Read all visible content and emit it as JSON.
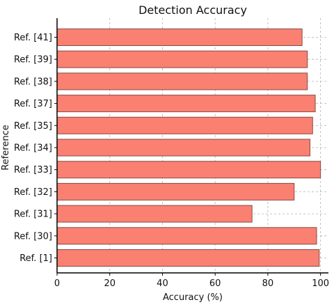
{
  "chart_data": {
    "type": "bar",
    "orientation": "horizontal",
    "title": "Detection Accuracy",
    "xlabel": "Accuracy (%)",
    "ylabel": "Reference",
    "categories": [
      "Ref. [41]",
      "Ref. [39]",
      "Ref. [38]",
      "Ref. [37]",
      "Ref. [35]",
      "Ref. [34]",
      "Ref. [33]",
      "Ref. [32]",
      "Ref. [31]",
      "Ref. [30]",
      "Ref. [1]"
    ],
    "values": [
      93,
      95,
      95,
      98,
      97,
      96,
      100,
      90,
      74,
      98.5,
      99.5
    ],
    "xlim": [
      0,
      103
    ],
    "xticks": [
      0,
      20,
      40,
      60,
      80,
      100
    ],
    "grid": true,
    "colors": {
      "bar_fill": "#fa8072",
      "bar_stroke": "#8a4a42",
      "grid": "#b0b0b0",
      "axis": "#000000"
    }
  }
}
